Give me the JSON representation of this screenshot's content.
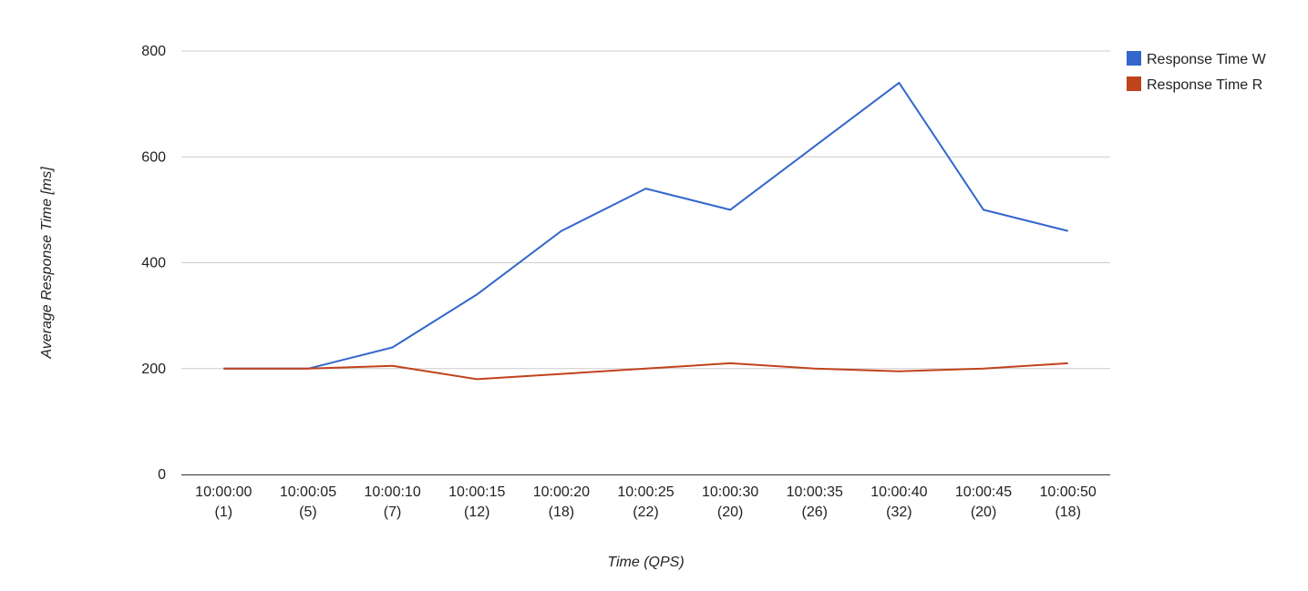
{
  "chart_data": {
    "type": "line",
    "title": "",
    "xlabel": "Time (QPS)",
    "ylabel": "Average Response Time [ms]",
    "ylim": [
      0,
      800
    ],
    "yticks": [
      0,
      200,
      400,
      600,
      800
    ],
    "grid": true,
    "legend_position": "right",
    "categories": [
      [
        "10:00:00",
        "(1)"
      ],
      [
        "10:00:05",
        "(5)"
      ],
      [
        "10:00:10",
        "(7)"
      ],
      [
        "10:00:15",
        "(12)"
      ],
      [
        "10:00:20",
        "(18)"
      ],
      [
        "10:00:25",
        "(22)"
      ],
      [
        "10:00:30",
        "(20)"
      ],
      [
        "10:00:35",
        "(26)"
      ],
      [
        "10:00:40",
        "(32)"
      ],
      [
        "10:00:45",
        "(20)"
      ],
      [
        "10:00:50",
        "(18)"
      ]
    ],
    "series": [
      {
        "name": "Response Time W",
        "color": "#3366cc",
        "values": [
          200,
          200,
          240,
          340,
          460,
          540,
          500,
          620,
          740,
          500,
          460
        ]
      },
      {
        "name": "Response Time R",
        "color": "#c0431b",
        "values": [
          200,
          200,
          205,
          180,
          190,
          200,
          210,
          200,
          195,
          200,
          210
        ]
      }
    ]
  }
}
